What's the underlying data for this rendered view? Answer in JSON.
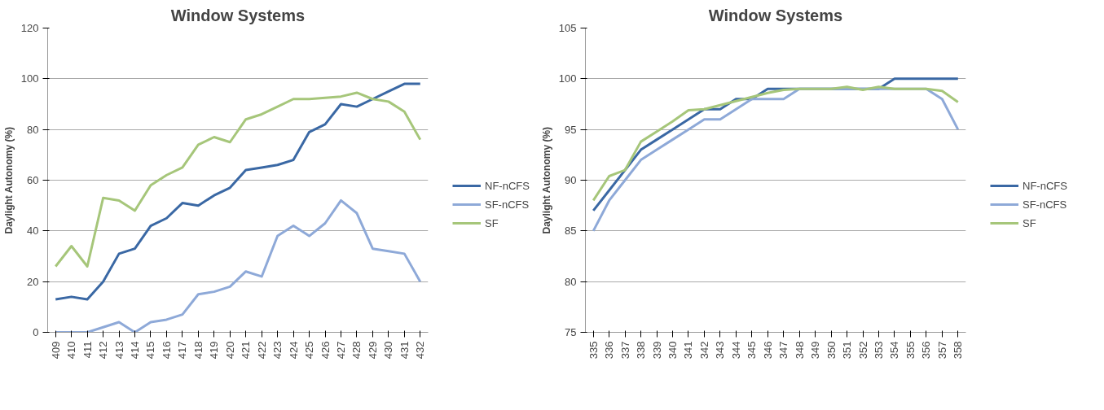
{
  "chart_data": [
    {
      "type": "line",
      "title": "Window Systems",
      "ylabel": "Daylight Autonomy (%)",
      "categories": [
        "409",
        "410",
        "411",
        "412",
        "413",
        "414",
        "415",
        "416",
        "417",
        "418",
        "419",
        "420",
        "421",
        "422",
        "423",
        "424",
        "425",
        "426",
        "427",
        "428",
        "429",
        "430",
        "431",
        "432"
      ],
      "series": [
        {
          "name": "NF-nCFS",
          "color": "#3a68a4",
          "values": [
            13,
            14,
            13,
            20,
            31,
            33,
            42,
            45,
            51,
            50,
            54,
            57,
            64,
            65,
            66,
            68,
            79,
            82,
            90,
            89,
            92,
            95,
            98,
            98
          ]
        },
        {
          "name": "SF-nCFS",
          "color": "#8ea9d8",
          "values": [
            0,
            0,
            0,
            2,
            4,
            0,
            4,
            5,
            7,
            15,
            16,
            18,
            24,
            22,
            38,
            42,
            38,
            43,
            52,
            47,
            33,
            32,
            31,
            20
          ]
        },
        {
          "name": "SF",
          "color": "#a6c67a",
          "values": [
            26,
            34,
            26,
            53,
            52,
            48,
            58,
            62,
            65,
            74,
            77,
            75,
            84,
            86,
            89,
            92,
            92,
            92.5,
            93,
            94.5,
            92,
            91,
            87,
            76
          ]
        }
      ],
      "ylim": [
        0,
        120
      ],
      "yticks": [
        0,
        20,
        40,
        60,
        80,
        100,
        120
      ],
      "grid": "y",
      "legend": "right",
      "marker": "none",
      "line_style": "solid"
    },
    {
      "type": "line",
      "title": "Window Systems",
      "ylabel": "Daylight Autonomy (%)",
      "categories": [
        "335",
        "336",
        "337",
        "338",
        "339",
        "340",
        "341",
        "342",
        "343",
        "344",
        "345",
        "346",
        "347",
        "348",
        "349",
        "350",
        "351",
        "352",
        "353",
        "354",
        "355",
        "356",
        "357",
        "358"
      ],
      "series": [
        {
          "name": "NF-nCFS",
          "color": "#3a68a4",
          "values": [
            87,
            89,
            91,
            93,
            94,
            95,
            96,
            97,
            97,
            98,
            98,
            99,
            99,
            99,
            99,
            99,
            99,
            99,
            99,
            100,
            100,
            100,
            100,
            100
          ]
        },
        {
          "name": "SF-nCFS",
          "color": "#8ea9d8",
          "values": [
            85,
            88,
            90,
            92,
            93,
            94,
            95,
            96,
            96,
            97,
            98,
            98,
            98,
            99,
            99,
            99,
            99,
            99,
            99,
            99,
            99,
            99,
            98,
            95
          ]
        },
        {
          "name": "SF",
          "color": "#a6c67a",
          "values": [
            88,
            90.4,
            91,
            93.8,
            94.8,
            95.8,
            96.9,
            97,
            97.4,
            97.8,
            98.2,
            98.6,
            98.9,
            99,
            99,
            99,
            99.2,
            98.9,
            99.2,
            99,
            99,
            99,
            98.8,
            97.7
          ]
        }
      ],
      "ylim": [
        75,
        105
      ],
      "yticks": [
        75,
        80,
        85,
        90,
        95,
        100,
        105
      ],
      "grid": "y",
      "legend": "right",
      "marker": "none",
      "line_style": "solid"
    }
  ]
}
